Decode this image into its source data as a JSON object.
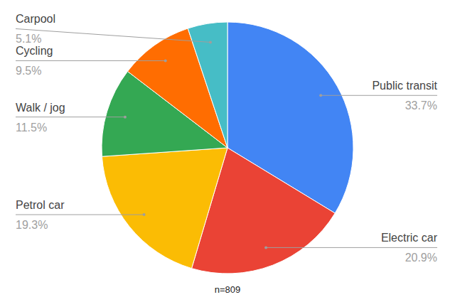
{
  "chart_data": {
    "type": "pie",
    "subtitle": "n=809",
    "categories": [
      "Public transit",
      "Electric car",
      "Petrol car",
      "Walk / jog",
      "Cycling",
      "Carpool"
    ],
    "values": [
      33.7,
      20.9,
      19.3,
      11.5,
      9.5,
      5.1
    ],
    "value_labels": [
      "33.7%",
      "20.9%",
      "19.3%",
      "11.5%",
      "9.5%",
      "5.1%"
    ],
    "colors": [
      "#4285f4",
      "#ea4335",
      "#fbbc04",
      "#34a853",
      "#ff6d01",
      "#46bdc6"
    ],
    "data_labels": true
  }
}
